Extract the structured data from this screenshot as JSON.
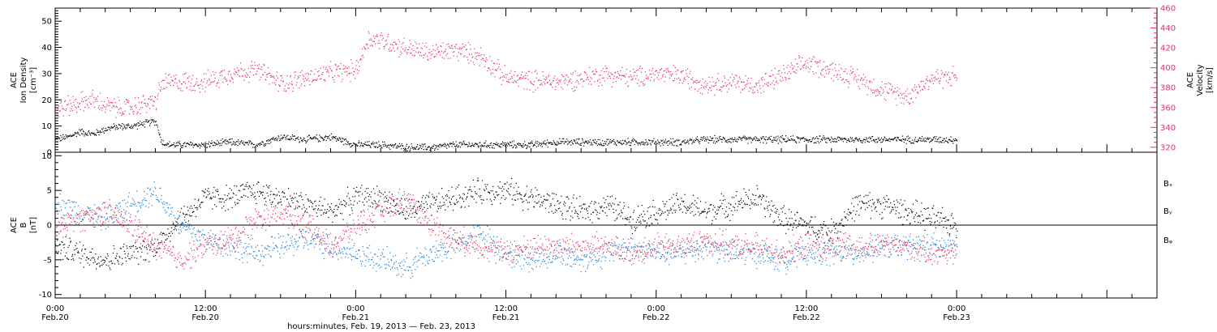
{
  "colors": {
    "density": "#000000",
    "velocity": "#e8315a",
    "bx": "#000000",
    "by": "#1a7fd8",
    "bz": "#e8315a",
    "axis": "#000000",
    "background": "#ffffff"
  },
  "chart_data": [
    {
      "panel": "top",
      "type": "scatter",
      "ylabel_left": [
        "ACE",
        "Ion Density",
        "[cm⁻³]"
      ],
      "ylabel_right": [
        "ACE",
        "Velocity",
        "[km/s]"
      ],
      "ylim_left": [
        0,
        55
      ],
      "ylim_right": [
        315,
        460
      ],
      "yticks_left": [
        "0",
        "10",
        "20",
        "30",
        "40",
        "50"
      ],
      "yticks_right": [
        "320",
        "340",
        "360",
        "380",
        "400",
        "420",
        "440",
        "460"
      ],
      "series": [
        {
          "key": "density",
          "axis": "left",
          "color": "#000000",
          "x": [
            0,
            1,
            2,
            3,
            4,
            5,
            6,
            7,
            8,
            8.5,
            9,
            10,
            12,
            14,
            16,
            18,
            20,
            22,
            24,
            26,
            28,
            30,
            32,
            34,
            36,
            38,
            40,
            42,
            44,
            46,
            48,
            50,
            52,
            54,
            56,
            58,
            60,
            62,
            64,
            66,
            68,
            70,
            72
          ],
          "values": [
            5,
            6,
            8,
            7,
            9,
            10,
            10,
            11,
            12,
            4,
            3,
            3,
            3,
            4,
            3,
            6,
            5,
            6,
            3,
            3,
            2,
            2,
            3,
            3,
            3,
            3,
            4,
            4,
            4,
            4,
            4,
            4,
            5,
            5,
            5,
            5,
            5,
            5,
            5,
            5,
            5,
            5,
            5
          ]
        },
        {
          "key": "velocity",
          "axis": "right",
          "color": "#e8315a",
          "x": [
            0,
            1,
            2,
            3,
            4,
            5,
            6,
            7,
            8,
            8.5,
            9,
            10,
            12,
            14,
            16,
            18,
            20,
            22,
            24,
            25,
            26,
            28,
            30,
            32,
            34,
            36,
            38,
            40,
            42,
            44,
            46,
            48,
            50,
            52,
            54,
            56,
            58,
            60,
            62,
            64,
            66,
            68,
            70,
            72
          ],
          "values": [
            358,
            362,
            366,
            368,
            362,
            360,
            360,
            364,
            366,
            385,
            385,
            386,
            386,
            395,
            398,
            385,
            390,
            395,
            398,
            430,
            428,
            420,
            415,
            418,
            412,
            390,
            388,
            386,
            390,
            394,
            390,
            394,
            392,
            384,
            386,
            382,
            392,
            405,
            398,
            390,
            378,
            372,
            390,
            392
          ]
        }
      ]
    },
    {
      "panel": "bottom",
      "type": "scatter",
      "ylabel_left": [
        "ACE",
        "B",
        "[nT]"
      ],
      "ylim": [
        -10.5,
        10.5
      ],
      "yticks": [
        "-10",
        "-5",
        "0",
        "5",
        "10"
      ],
      "legend": [
        "Bₓ",
        "Bᵧ",
        "Bᵩ"
      ],
      "series": [
        {
          "key": "bx",
          "color": "#000000",
          "x": [
            0,
            2,
            4,
            6,
            8,
            10,
            12,
            14,
            16,
            18,
            20,
            22,
            24,
            26,
            28,
            30,
            32,
            34,
            36,
            38,
            40,
            42,
            44,
            46,
            48,
            50,
            52,
            54,
            56,
            58,
            60,
            62,
            64,
            66,
            68,
            70,
            72
          ],
          "values": [
            -3,
            -4,
            -5,
            -4,
            -3,
            1,
            4,
            4,
            5,
            4,
            3,
            2,
            4,
            4,
            2,
            3,
            4,
            5,
            5,
            4,
            3,
            2,
            3,
            1,
            2,
            3,
            2,
            3,
            4,
            1,
            0,
            -1,
            3,
            3,
            2,
            1,
            0
          ]
        },
        {
          "key": "by",
          "color": "#1a7fd8",
          "x": [
            0,
            2,
            4,
            6,
            8,
            10,
            12,
            14,
            16,
            18,
            20,
            22,
            24,
            26,
            28,
            30,
            32,
            34,
            36,
            38,
            40,
            42,
            44,
            46,
            48,
            50,
            52,
            54,
            56,
            58,
            60,
            62,
            64,
            66,
            68,
            70,
            72
          ],
          "values": [
            3,
            2,
            1,
            3,
            5,
            0,
            -2,
            -3,
            -4,
            -3,
            -2,
            -3,
            -4,
            -5,
            -6,
            -4,
            -3,
            -1,
            -4,
            -5,
            -4,
            -5,
            -4,
            -3,
            -4,
            -4,
            -3,
            -4,
            -4,
            -5,
            -4,
            -4,
            -4,
            -3,
            -3,
            -3,
            -3
          ]
        },
        {
          "key": "bz",
          "color": "#e8315a",
          "x": [
            0,
            2,
            4,
            6,
            8,
            10,
            12,
            14,
            16,
            18,
            20,
            22,
            24,
            26,
            28,
            30,
            32,
            34,
            36,
            38,
            40,
            42,
            44,
            46,
            48,
            50,
            52,
            54,
            56,
            58,
            60,
            62,
            64,
            66,
            68,
            70,
            72
          ],
          "values": [
            0,
            1,
            2,
            0,
            -3,
            -5,
            -3,
            -2,
            1,
            2,
            0,
            -3,
            0,
            2,
            4,
            0,
            -2,
            -3,
            -4,
            -3,
            -3,
            -3,
            -3,
            -4,
            -3,
            -3,
            -2,
            -3,
            -3,
            -4,
            -3,
            -3,
            -3,
            -3,
            -3,
            -4,
            -4
          ]
        }
      ]
    }
  ],
  "x_axis": {
    "range_hours": [
      0,
      88
    ],
    "ticks": [
      {
        "hour": 0,
        "time": "0:00",
        "date": "Feb.20"
      },
      {
        "hour": 12,
        "time": "12:00",
        "date": "Feb.20"
      },
      {
        "hour": 24,
        "time": "0:00",
        "date": "Feb.21"
      },
      {
        "hour": 36,
        "time": "12:00",
        "date": "Feb.21"
      },
      {
        "hour": 48,
        "time": "0:00",
        "date": "Feb.22"
      },
      {
        "hour": 60,
        "time": "12:00",
        "date": "Feb.22"
      },
      {
        "hour": 72,
        "time": "0:00",
        "date": "Feb.23"
      }
    ],
    "label": "hours:minutes, Feb. 19, 2013 — Feb. 23, 2013"
  }
}
